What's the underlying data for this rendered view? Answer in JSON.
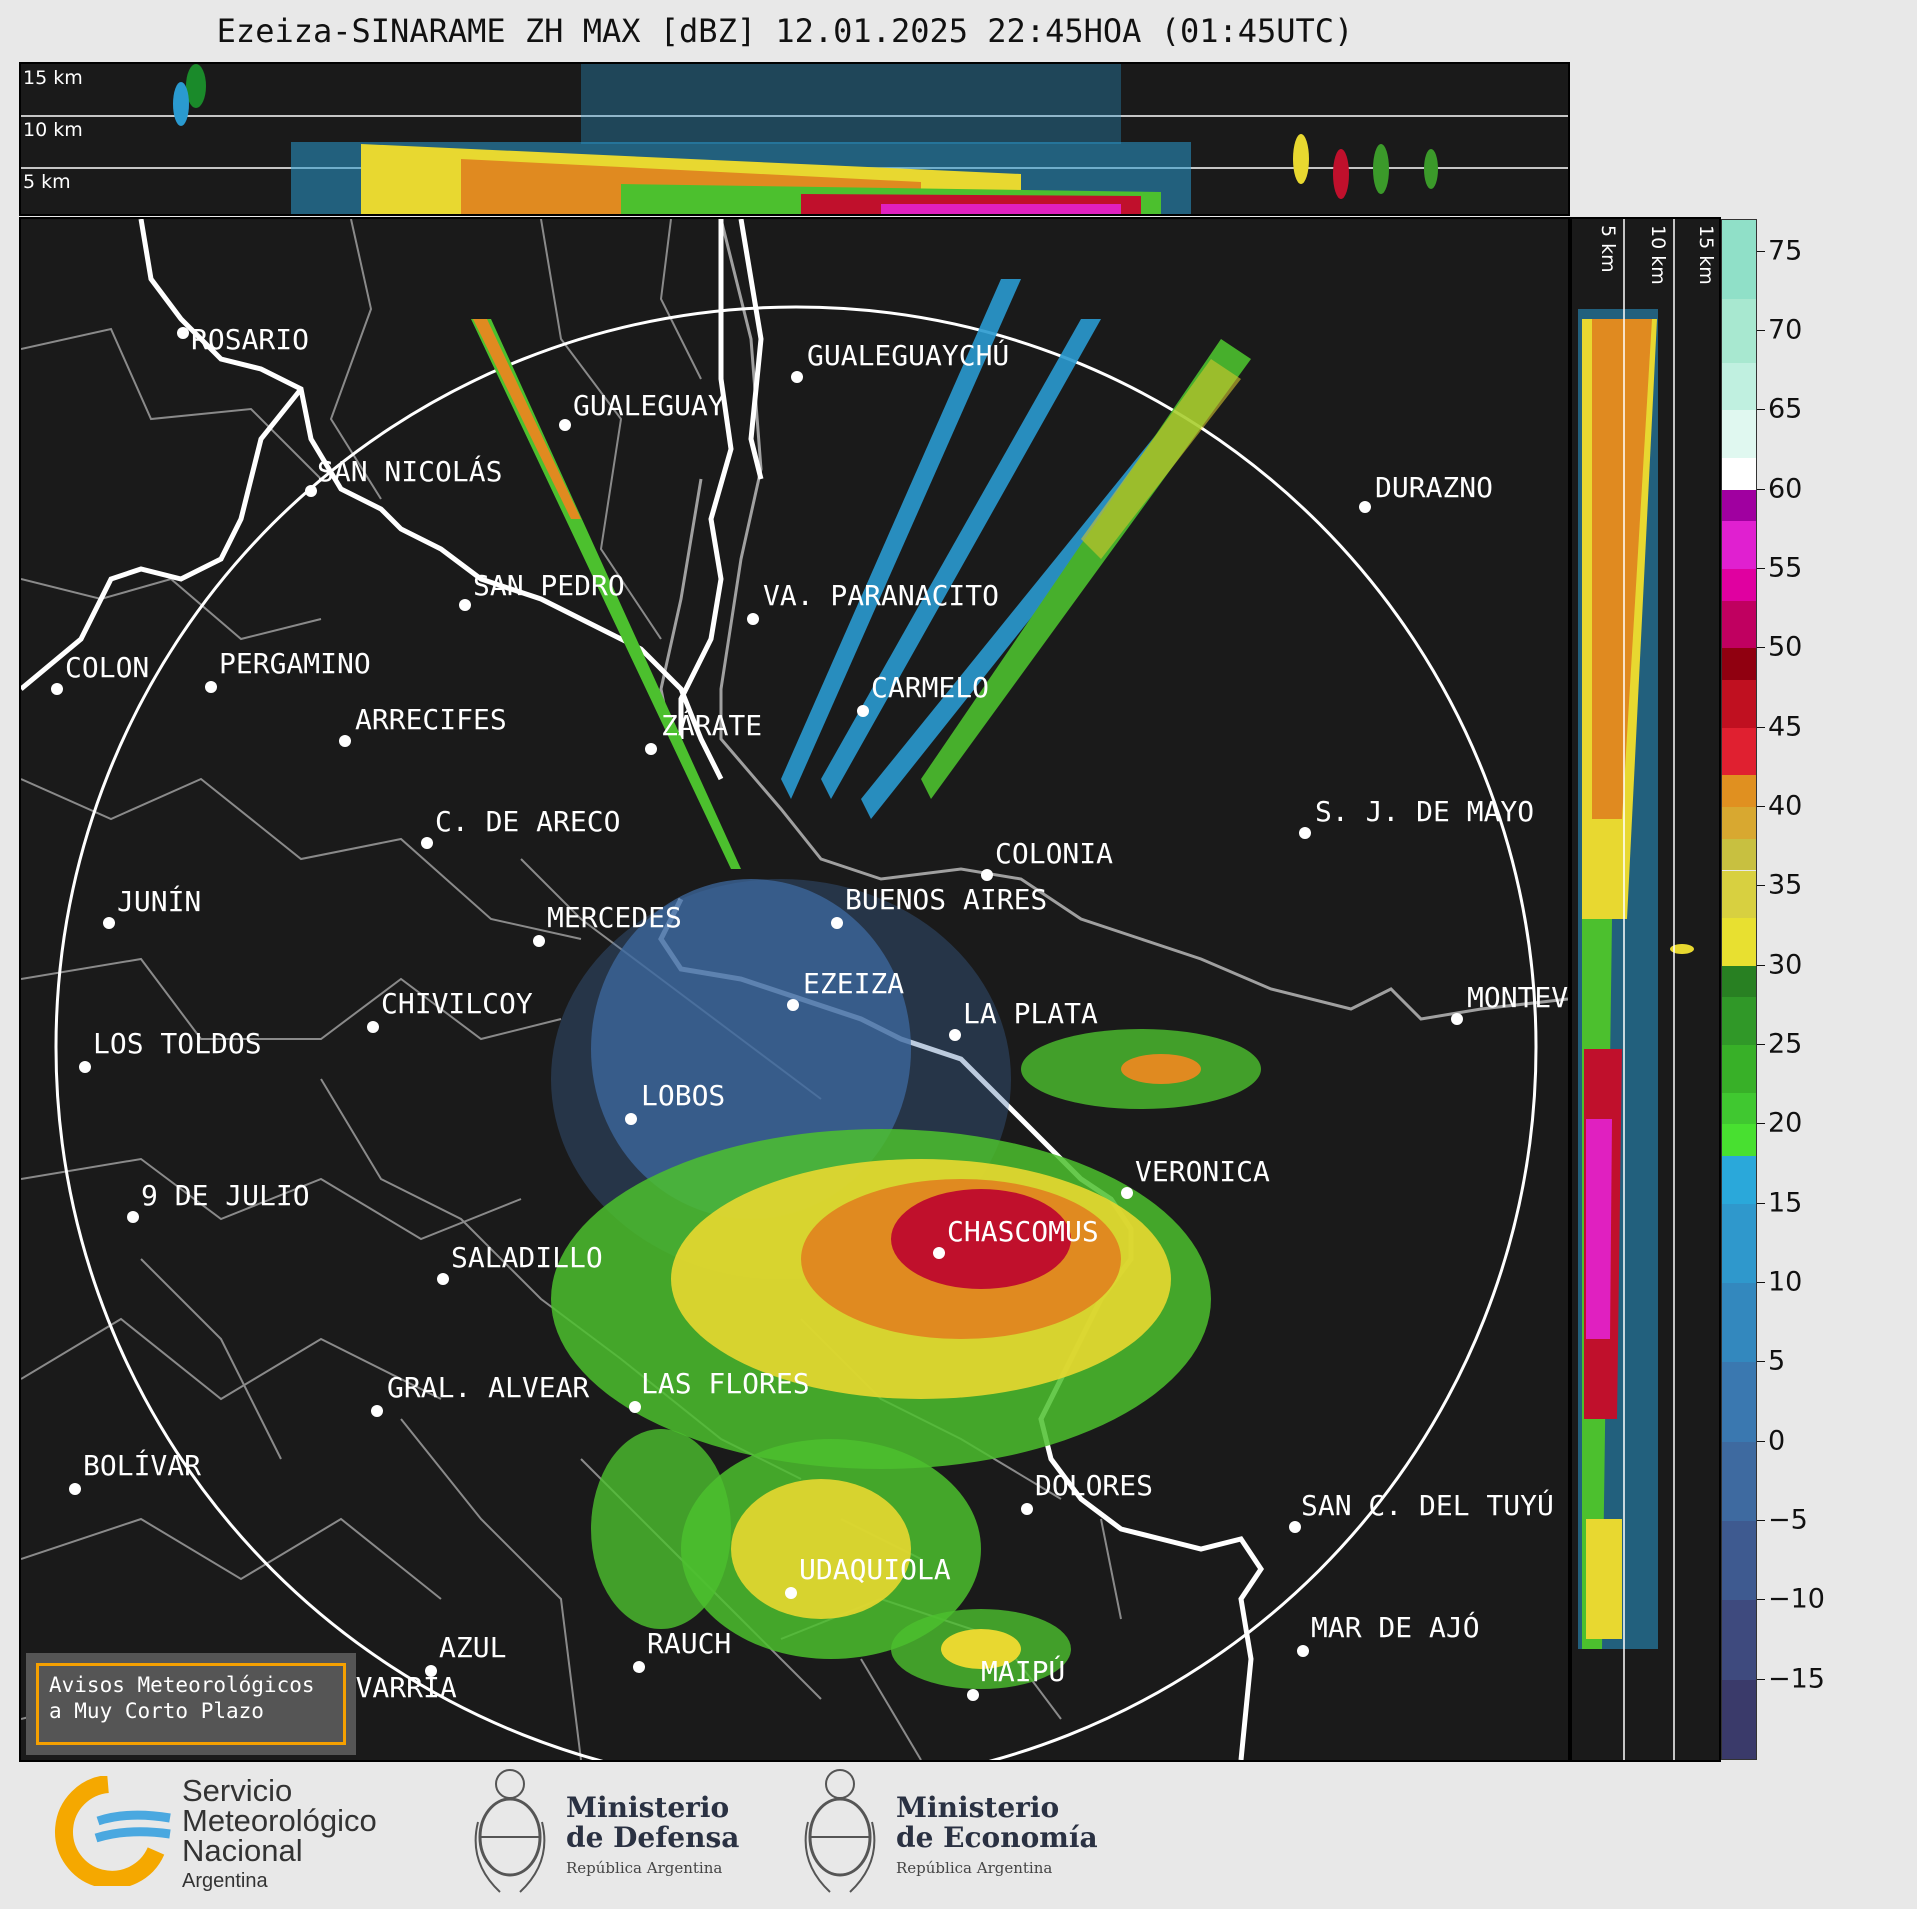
{
  "title": "Ezeiza-SINARAME ZH MAX [dBZ] 12.01.2025 22:45HOA (01:45UTC)",
  "top_panel": {
    "height_labels": [
      "15 km",
      "10 km",
      "5 km"
    ]
  },
  "side_panel": {
    "height_labels": [
      "5 km",
      "10 km",
      "15 km"
    ]
  },
  "colorbar": {
    "unit": "dBZ",
    "ticks": [
      "75",
      "70",
      "65",
      "60",
      "55",
      "50",
      "45",
      "40",
      "35",
      "30",
      "25",
      "20",
      "15",
      "10",
      "5",
      "0",
      "−5",
      "−10",
      "−15"
    ],
    "range": [
      -20,
      77
    ]
  },
  "cities": [
    {
      "name": "ROSARIO"
    },
    {
      "name": "GUALEGUAYCHÚ"
    },
    {
      "name": "GUALEGUAY"
    },
    {
      "name": "SAN NICOLÁS"
    },
    {
      "name": "DURAZNO"
    },
    {
      "name": "SAN PEDRO"
    },
    {
      "name": "VA. PARANACITO"
    },
    {
      "name": "COLON"
    },
    {
      "name": "PERGAMINO"
    },
    {
      "name": "CARMELO"
    },
    {
      "name": "ARRECIFES"
    },
    {
      "name": "ZÁRATE"
    },
    {
      "name": "S. J. DE MAYO"
    },
    {
      "name": "C. DE ARECO"
    },
    {
      "name": "COLONIA"
    },
    {
      "name": "JUNÍN"
    },
    {
      "name": "BUENOS AIRES"
    },
    {
      "name": "MERCEDES"
    },
    {
      "name": "EZEIZA"
    },
    {
      "name": "MONTEVIDEO"
    },
    {
      "name": "CHIVILCOY"
    },
    {
      "name": "LA PLATA"
    },
    {
      "name": "LOS TOLDOS"
    },
    {
      "name": "LOBOS"
    },
    {
      "name": "VERONICA"
    },
    {
      "name": "9 DE JULIO"
    },
    {
      "name": "CHASCOMUS"
    },
    {
      "name": "SALADILLO"
    },
    {
      "name": "GRAL. ALVEAR"
    },
    {
      "name": "LAS FLORES"
    },
    {
      "name": "BOLÍVAR"
    },
    {
      "name": "DOLORES"
    },
    {
      "name": "SAN C. DEL TUYÚ"
    },
    {
      "name": "UDAQUIOLA"
    },
    {
      "name": "MAR DE AJÓ"
    },
    {
      "name": "RAUCH"
    },
    {
      "name": "AZUL"
    },
    {
      "name": "OLAVARRÍA"
    },
    {
      "name": "MAIPÚ"
    }
  ],
  "aviso": {
    "line1": "Avisos Meteorológicos",
    "line2": "a Muy Corto Plazo"
  },
  "logos": {
    "smn": {
      "l1": "Servicio",
      "l2": "Meteorológico",
      "l3": "Nacional",
      "l4": "Argentina"
    },
    "defensa": {
      "l1": "Ministerio",
      "l2": "de Defensa",
      "l3": "República Argentina"
    },
    "economia": {
      "l1": "Ministerio",
      "l2": "de Economía",
      "l3": "República Argentina"
    }
  },
  "colors": {
    "panel_bg": "#1a1a1a",
    "coast": "#ffffff",
    "border": "#8a8a8a",
    "aviso_border": "#f5a000"
  }
}
